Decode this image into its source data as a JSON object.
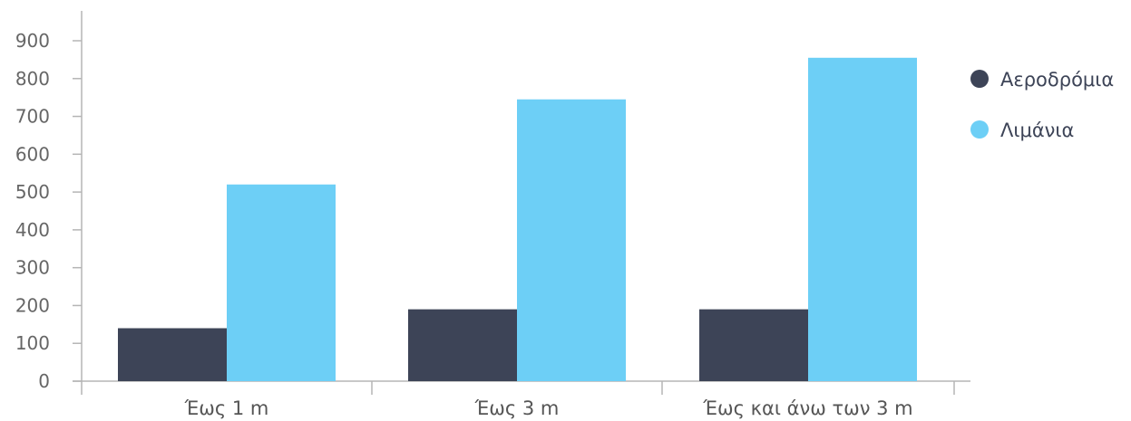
{
  "chart_data": {
    "type": "bar",
    "categories": [
      "Έως 1 m",
      "Έως 3 m",
      "Έως και άνω των 3 m"
    ],
    "series": [
      {
        "name": "Αεροδρόμια",
        "color": "#3d4457",
        "values": [
          140,
          190,
          190
        ]
      },
      {
        "name": "Λιμάνια",
        "color": "#6dcff6",
        "values": [
          520,
          745,
          855
        ]
      }
    ],
    "yticks": [
      0,
      100,
      200,
      300,
      400,
      500,
      600,
      700,
      800,
      900
    ],
    "ylim": [
      0,
      900
    ],
    "grid": false,
    "legend": "right"
  }
}
